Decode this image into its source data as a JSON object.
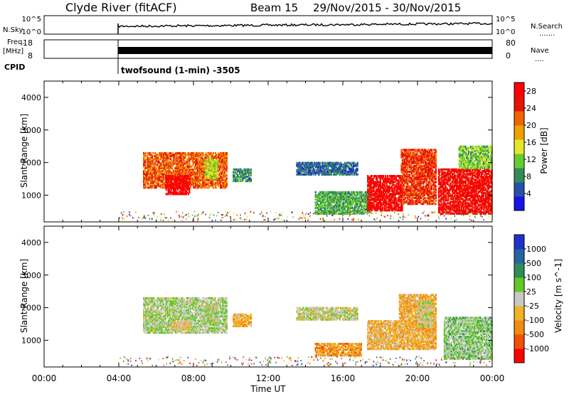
{
  "header": {
    "station": "Clyde River (fitACF)",
    "beam": "Beam 15",
    "dates": "29/Nov/2015 - 30/Nov/2015"
  },
  "nsky": {
    "label": "N.Sky",
    "ticks": [
      "10^5",
      "10^0"
    ],
    "right_label": "N.Search",
    "right_ticks": [
      "10^5",
      "10^0"
    ],
    "right_key": "......."
  },
  "freq": {
    "label": "Freq.",
    "unit": "[MHz]",
    "ticks": [
      "18",
      "8"
    ],
    "right_label": "Nave",
    "right_ticks": [
      "80",
      "0"
    ],
    "right_key": "...."
  },
  "cpid": {
    "label": "CPID",
    "program": "twofsound (1-min) -3505"
  },
  "colors": {
    "power": [
      "#1414e6",
      "#2850a8",
      "#328c5a",
      "#66cc33",
      "#e6e628",
      "#f0a000",
      "#f06400",
      "#e61400",
      "#ff0000"
    ],
    "velocity": [
      "#ff0000",
      "#f05000",
      "#f08c10",
      "#f0b428",
      "#c8c8c8",
      "#64c828",
      "#328c5a",
      "#2864a0",
      "#1e32c8"
    ]
  },
  "chart_data": [
    {
      "type": "heatmap",
      "title": "Power",
      "xlabel": "",
      "ylabel": "Slant Range [km]",
      "xlim": [
        "00:00",
        "24:00"
      ],
      "ylim": [
        180,
        4500
      ],
      "yticks": [
        "1000",
        "2000",
        "3000",
        "4000"
      ],
      "colorbar": {
        "label": "Power [dB]",
        "ticks": [
          "4",
          "8",
          "12",
          "16",
          "20",
          "24",
          "28"
        ],
        "range": [
          0,
          30
        ]
      },
      "regions": [
        {
          "t0": 5.3,
          "t1": 9.8,
          "r0": 1200,
          "r1": 2300,
          "value": 22
        },
        {
          "t0": 6.5,
          "t1": 7.8,
          "r0": 1000,
          "r1": 1600,
          "value": 29
        },
        {
          "t0": 8.6,
          "t1": 9.3,
          "r0": 1500,
          "r1": 2100,
          "value": 14
        },
        {
          "t0": 10.1,
          "t1": 11.1,
          "r0": 1400,
          "r1": 1800,
          "value": 8
        },
        {
          "t0": 13.5,
          "t1": 16.8,
          "r0": 1600,
          "r1": 2000,
          "value": 6
        },
        {
          "t0": 14.5,
          "t1": 17.5,
          "r0": 400,
          "r1": 1100,
          "value": 10
        },
        {
          "t0": 17.3,
          "t1": 19.2,
          "r0": 500,
          "r1": 1600,
          "value": 28
        },
        {
          "t0": 19.1,
          "t1": 21.0,
          "r0": 700,
          "r1": 2400,
          "value": 24
        },
        {
          "t0": 21.1,
          "t1": 24.0,
          "r0": 400,
          "r1": 1800,
          "value": 27
        },
        {
          "t0": 22.2,
          "t1": 24.0,
          "r0": 1800,
          "r1": 2500,
          "value": 12
        }
      ]
    },
    {
      "type": "heatmap",
      "title": "Velocity",
      "xlabel": "Time UT",
      "ylabel": "Slant Range [km]",
      "xlim": [
        "00:00",
        "24:00"
      ],
      "ylim": [
        180,
        4500
      ],
      "yticks": [
        "1000",
        "2000",
        "3000",
        "4000"
      ],
      "xticks": [
        "00:00",
        "04:00",
        "08:00",
        "12:00",
        "16:00",
        "20:00",
        "00:00"
      ],
      "colorbar": {
        "label": "Velocity [m s^-1]",
        "ticks": [
          "1000",
          "500",
          "100",
          "25",
          "-25",
          "-100",
          "-500",
          "-1000"
        ],
        "range": [
          -1000,
          1000
        ]
      },
      "regions": [
        {
          "t0": 5.3,
          "t1": 9.8,
          "r0": 1200,
          "r1": 2300,
          "value": 80
        },
        {
          "t0": 6.8,
          "t1": 7.8,
          "r0": 1300,
          "r1": 1600,
          "value": -150
        },
        {
          "t0": 8.6,
          "t1": 9.3,
          "r0": 1500,
          "r1": 2100,
          "value": 40
        },
        {
          "t0": 10.1,
          "t1": 11.1,
          "r0": 1400,
          "r1": 1800,
          "value": -300
        },
        {
          "t0": 13.5,
          "t1": 16.8,
          "r0": 1600,
          "r1": 2000,
          "value": 0
        },
        {
          "t0": 14.5,
          "t1": 17.0,
          "r0": 500,
          "r1": 900,
          "value": -400
        },
        {
          "t0": 17.3,
          "t1": 19.0,
          "r0": 700,
          "r1": 1600,
          "value": -250
        },
        {
          "t0": 19.0,
          "t1": 21.0,
          "r0": 700,
          "r1": 2400,
          "value": -300
        },
        {
          "t0": 20.0,
          "t1": 20.8,
          "r0": 1400,
          "r1": 2200,
          "value": 0
        },
        {
          "t0": 21.4,
          "t1": 24.0,
          "r0": 400,
          "r1": 1700,
          "value": 150
        }
      ]
    }
  ]
}
